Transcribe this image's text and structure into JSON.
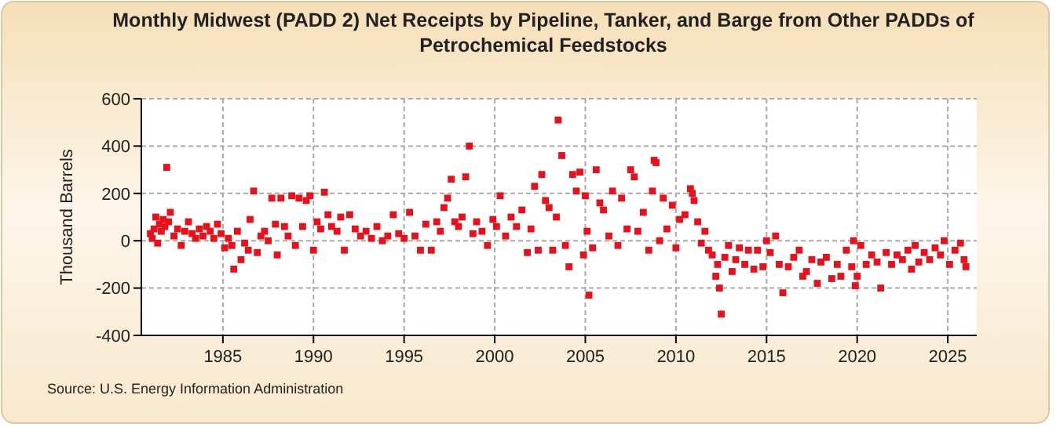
{
  "chart_data": {
    "type": "scatter",
    "title": "Monthly Midwest (PADD 2) Net Receipts by Pipeline, Tanker, and Barge from Other PADDs of Petrochemical Feedstocks",
    "ylabel": "Thousand Barrels",
    "annotations": [
      "Source: U.S. Energy Information Administration"
    ],
    "xlim": [
      1980.5,
      2026.6
    ],
    "xticks": [
      1985,
      1990,
      1995,
      2000,
      2005,
      2010,
      2015,
      2020,
      2025
    ],
    "ylim": [
      -400,
      600
    ],
    "yticks": [
      -400,
      -200,
      0,
      200,
      400,
      600
    ],
    "grid": true,
    "marker": "square",
    "series": [
      {
        "color": "#e8111b",
        "x": [
          1981.0,
          1981.1,
          1981.2,
          1981.3,
          1981.4,
          1981.5,
          1981.6,
          1981.7,
          1981.8,
          1981.9,
          1982.0,
          1982.1,
          1982.3,
          1982.5,
          1982.7,
          1982.9,
          1983.1,
          1983.3,
          1983.5,
          1983.7,
          1983.9,
          1984.1,
          1984.3,
          1984.5,
          1984.7,
          1984.9,
          1985.1,
          1985.3,
          1985.5,
          1985.6,
          1985.8,
          1986.0,
          1986.2,
          1986.4,
          1986.5,
          1986.7,
          1986.9,
          1987.1,
          1987.3,
          1987.5,
          1987.7,
          1987.9,
          1988.0,
          1988.2,
          1988.4,
          1988.6,
          1988.8,
          1989.0,
          1989.2,
          1989.4,
          1989.6,
          1989.8,
          1990.0,
          1990.2,
          1990.4,
          1990.6,
          1990.8,
          1991.0,
          1991.3,
          1991.5,
          1991.7,
          1992.0,
          1992.3,
          1992.6,
          1992.9,
          1993.2,
          1993.5,
          1993.8,
          1994.1,
          1994.4,
          1994.7,
          1995.0,
          1995.3,
          1995.6,
          1995.9,
          1996.2,
          1996.5,
          1996.8,
          1997.0,
          1997.2,
          1997.4,
          1997.6,
          1997.8,
          1998.0,
          1998.2,
          1998.4,
          1998.6,
          1998.8,
          1999.0,
          1999.3,
          1999.6,
          1999.9,
          2000.1,
          2000.3,
          2000.6,
          2000.9,
          2001.2,
          2001.5,
          2001.8,
          2002.0,
          2002.2,
          2002.4,
          2002.6,
          2002.8,
          2003.0,
          2003.2,
          2003.4,
          2003.5,
          2003.7,
          2003.9,
          2004.1,
          2004.3,
          2004.5,
          2004.7,
          2004.9,
          2005.0,
          2005.1,
          2005.2,
          2005.4,
          2005.6,
          2005.8,
          2006.0,
          2006.3,
          2006.5,
          2006.8,
          2007.0,
          2007.3,
          2007.5,
          2007.7,
          2007.9,
          2008.2,
          2008.5,
          2008.7,
          2008.8,
          2008.9,
          2009.1,
          2009.3,
          2009.5,
          2009.8,
          2010.0,
          2010.2,
          2010.5,
          2010.8,
          2010.9,
          2011.0,
          2011.2,
          2011.4,
          2011.6,
          2011.8,
          2012.0,
          2012.2,
          2012.3,
          2012.4,
          2012.5,
          2012.7,
          2012.9,
          2013.1,
          2013.3,
          2013.5,
          2013.8,
          2014.0,
          2014.3,
          2014.5,
          2014.8,
          2015.0,
          2015.2,
          2015.5,
          2015.7,
          2015.9,
          2016.2,
          2016.5,
          2016.8,
          2017.0,
          2017.2,
          2017.5,
          2017.8,
          2018.0,
          2018.3,
          2018.6,
          2018.9,
          2019.1,
          2019.4,
          2019.7,
          2019.8,
          2019.9,
          2020.0,
          2020.2,
          2020.5,
          2020.8,
          2021.1,
          2021.3,
          2021.6,
          2021.9,
          2022.2,
          2022.5,
          2022.8,
          2023.0,
          2023.2,
          2023.4,
          2023.7,
          2024.0,
          2024.3,
          2024.6,
          2024.8,
          2025.1,
          2025.4,
          2025.7,
          2025.9,
          2026.0
        ],
        "values": [
          30,
          10,
          50,
          100,
          -10,
          70,
          40,
          90,
          60,
          310,
          80,
          120,
          20,
          50,
          -20,
          40,
          80,
          30,
          10,
          50,
          20,
          60,
          40,
          10,
          70,
          30,
          -30,
          10,
          -20,
          -120,
          40,
          -80,
          -10,
          -40,
          90,
          210,
          -50,
          20,
          40,
          0,
          180,
          70,
          -60,
          180,
          60,
          20,
          190,
          -20,
          180,
          60,
          170,
          190,
          -40,
          80,
          50,
          205,
          110,
          60,
          40,
          100,
          -40,
          110,
          50,
          20,
          40,
          10,
          60,
          0,
          20,
          110,
          30,
          10,
          120,
          20,
          -40,
          70,
          -40,
          80,
          40,
          140,
          180,
          260,
          80,
          60,
          100,
          270,
          400,
          30,
          80,
          40,
          -20,
          90,
          60,
          190,
          20,
          100,
          60,
          130,
          -50,
          50,
          230,
          -40,
          280,
          170,
          140,
          -40,
          100,
          510,
          360,
          -20,
          -110,
          280,
          210,
          290,
          -60,
          190,
          40,
          -230,
          -30,
          300,
          160,
          130,
          20,
          210,
          -20,
          180,
          50,
          300,
          270,
          40,
          120,
          -40,
          210,
          340,
          330,
          0,
          180,
          50,
          150,
          -30,
          90,
          110,
          220,
          200,
          170,
          80,
          -10,
          40,
          -40,
          -60,
          -150,
          -100,
          -200,
          -310,
          -70,
          -20,
          -130,
          -80,
          -30,
          -100,
          -40,
          -120,
          -40,
          -110,
          0,
          -50,
          20,
          -100,
          -220,
          -110,
          -70,
          -40,
          -150,
          -130,
          -80,
          -180,
          -90,
          -70,
          -160,
          -100,
          -150,
          -40,
          -110,
          0,
          -190,
          -150,
          -20,
          -100,
          -60,
          -90,
          -200,
          -50,
          -100,
          -60,
          -80,
          -40,
          -120,
          -20,
          -90,
          -50,
          -80,
          -30,
          -60,
          0,
          -100,
          -40,
          -10,
          -80,
          -110
        ]
      }
    ]
  }
}
